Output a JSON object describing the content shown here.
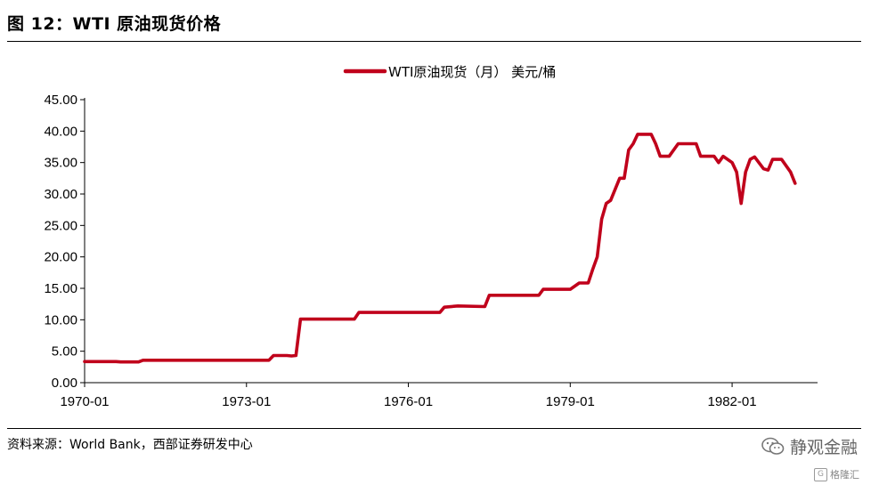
{
  "title": "图 12：WTI 原油现货价格",
  "source": "资料来源：World Bank，西部证券研发中心",
  "watermark": {
    "text": "静观金融",
    "icon": "wechat-icon"
  },
  "brand": {
    "text": "格隆汇",
    "icon": "g-logo-icon"
  },
  "colors": {
    "series": "#c0001b",
    "axis": "#000000"
  },
  "chart_data": {
    "type": "line",
    "title": "",
    "xlabel": "",
    "ylabel": "",
    "legend_position": "top",
    "grid": false,
    "ylim": [
      0,
      45
    ],
    "xlim": [
      "1970-01",
      "1983-08"
    ],
    "y_ticks": [
      "0.00",
      "5.00",
      "10.00",
      "15.00",
      "20.00",
      "25.00",
      "30.00",
      "35.00",
      "40.00",
      "45.00"
    ],
    "x_ticks": [
      "1970-01",
      "1973-01",
      "1976-01",
      "1979-01",
      "1982-01"
    ],
    "series": [
      {
        "name": "WTI原油现货（月） 美元/桶",
        "points": [
          [
            "1970-01",
            3.35
          ],
          [
            "1970-08",
            3.35
          ],
          [
            "1970-09",
            3.3
          ],
          [
            "1971-01",
            3.3
          ],
          [
            "1971-02",
            3.56
          ],
          [
            "1973-05",
            3.56
          ],
          [
            "1973-06",
            3.56
          ],
          [
            "1973-07",
            4.31
          ],
          [
            "1973-09",
            4.31
          ],
          [
            "1973-10",
            4.31
          ],
          [
            "1973-11",
            4.25
          ],
          [
            "1973-12",
            4.31
          ],
          [
            "1974-01",
            10.11
          ],
          [
            "1974-12",
            10.11
          ],
          [
            "1975-01",
            10.11
          ],
          [
            "1975-02",
            11.16
          ],
          [
            "1976-01",
            11.16
          ],
          [
            "1976-08",
            11.16
          ],
          [
            "1976-09",
            12.0
          ],
          [
            "1976-12",
            12.2
          ],
          [
            "1977-06",
            12.1
          ],
          [
            "1977-07",
            13.9
          ],
          [
            "1977-12",
            13.9
          ],
          [
            "1978-06",
            13.9
          ],
          [
            "1978-07",
            14.85
          ],
          [
            "1979-01",
            14.85
          ],
          [
            "1979-03",
            15.85
          ],
          [
            "1979-05",
            15.85
          ],
          [
            "1979-06",
            18.0
          ],
          [
            "1979-07",
            20.0
          ],
          [
            "1979-08",
            26.0
          ],
          [
            "1979-09",
            28.5
          ],
          [
            "1979-10",
            29.0
          ],
          [
            "1979-12",
            32.5
          ],
          [
            "1980-01",
            32.5
          ],
          [
            "1980-02",
            37.0
          ],
          [
            "1980-03",
            38.0
          ],
          [
            "1980-04",
            39.5
          ],
          [
            "1980-05",
            39.5
          ],
          [
            "1980-06",
            39.5
          ],
          [
            "1980-07",
            39.5
          ],
          [
            "1980-08",
            38.0
          ],
          [
            "1980-09",
            36.0
          ],
          [
            "1980-11",
            36.0
          ],
          [
            "1981-01",
            38.0
          ],
          [
            "1981-04",
            38.0
          ],
          [
            "1981-05",
            38.0
          ],
          [
            "1981-06",
            36.0
          ],
          [
            "1981-09",
            36.0
          ],
          [
            "1981-10",
            35.0
          ],
          [
            "1981-11",
            36.0
          ],
          [
            "1982-01",
            35.0
          ],
          [
            "1982-02",
            33.5
          ],
          [
            "1982-03",
            28.5
          ],
          [
            "1982-04",
            33.5
          ],
          [
            "1982-05",
            35.5
          ],
          [
            "1982-06",
            35.9
          ],
          [
            "1982-08",
            34.0
          ],
          [
            "1982-09",
            33.8
          ],
          [
            "1982-10",
            35.5
          ],
          [
            "1982-12",
            35.5
          ],
          [
            "1983-02",
            33.5
          ],
          [
            "1983-03",
            31.7
          ]
        ]
      }
    ]
  }
}
